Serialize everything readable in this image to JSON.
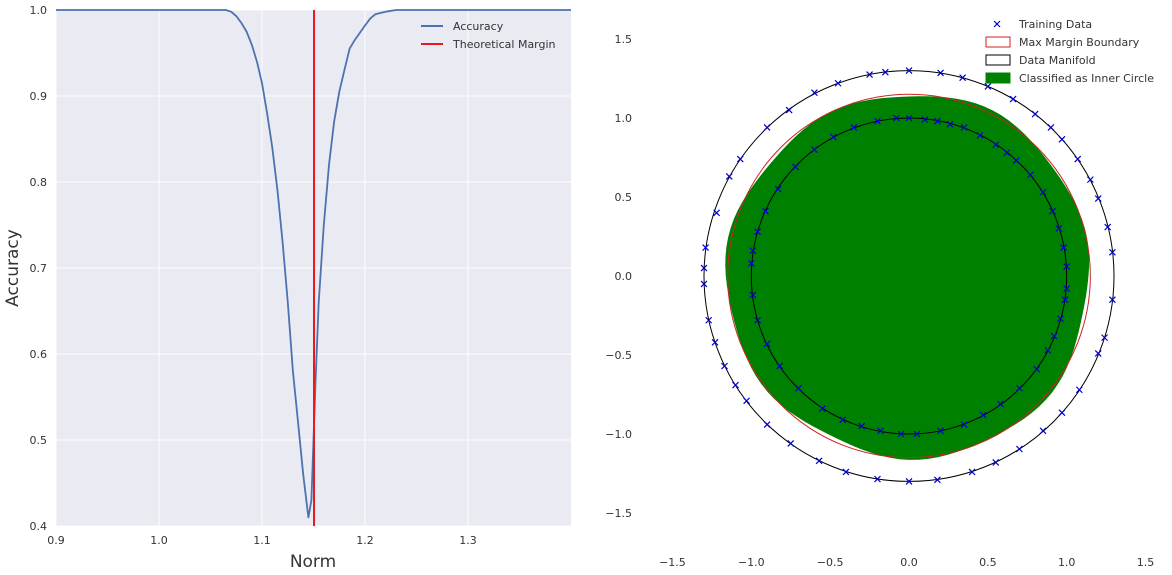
{
  "chart_data": [
    {
      "type": "line",
      "title": "",
      "xlabel": "Norm",
      "ylabel": "Accuracy",
      "xlim": [
        0.9,
        1.4
      ],
      "ylim": [
        0.4,
        1.0
      ],
      "grid": true,
      "legend": "top-right",
      "xticks": [
        {
          "value": 0.9,
          "label": "0.9"
        },
        {
          "value": 1.0,
          "label": "1.0"
        },
        {
          "value": 1.1,
          "label": "1.1"
        },
        {
          "value": 1.2,
          "label": "1.2"
        },
        {
          "value": 1.3,
          "label": "1.3"
        }
      ],
      "yticks": [
        {
          "value": 0.4,
          "label": "0.4"
        },
        {
          "value": 0.5,
          "label": "0.5"
        },
        {
          "value": 0.6,
          "label": "0.6"
        },
        {
          "value": 0.7,
          "label": "0.7"
        },
        {
          "value": 0.8,
          "label": "0.8"
        },
        {
          "value": 0.9,
          "label": "0.9"
        },
        {
          "value": 1.0,
          "label": "1.0"
        }
      ],
      "series": [
        {
          "name": "Accuracy",
          "color": "#4c72b0",
          "x": [
            0.9,
            1.05,
            1.065,
            1.07,
            1.075,
            1.08,
            1.085,
            1.09,
            1.095,
            1.1,
            1.105,
            1.11,
            1.115,
            1.12,
            1.125,
            1.13,
            1.135,
            1.14,
            1.145,
            1.148,
            1.15,
            1.152,
            1.155,
            1.16,
            1.165,
            1.17,
            1.175,
            1.18,
            1.185,
            1.19,
            1.2,
            1.205,
            1.21,
            1.22,
            1.23,
            1.24,
            1.4
          ],
          "y": [
            1.0,
            1.0,
            1.0,
            0.998,
            0.993,
            0.985,
            0.975,
            0.96,
            0.94,
            0.915,
            0.88,
            0.84,
            0.79,
            0.73,
            0.66,
            0.58,
            0.52,
            0.46,
            0.41,
            0.43,
            0.5,
            0.57,
            0.66,
            0.75,
            0.82,
            0.87,
            0.905,
            0.93,
            0.955,
            0.965,
            0.982,
            0.99,
            0.995,
            0.998,
            1.0,
            1.0,
            1.0
          ]
        },
        {
          "name": "Theoretical Margin",
          "color": "#e41a1c",
          "type": "vline",
          "x": 1.1505
        }
      ]
    },
    {
      "type": "scatter",
      "title": "",
      "xlabel": "",
      "ylabel": "",
      "xlim": [
        -1.5,
        1.5
      ],
      "ylim": [
        -1.5,
        1.5
      ],
      "grid": false,
      "legend": "top-right",
      "xticks": [
        {
          "value": -1.5,
          "label": "−1.5"
        },
        {
          "value": -1.0,
          "label": "−1.0"
        },
        {
          "value": -0.5,
          "label": "−0.5"
        },
        {
          "value": 0.0,
          "label": "0.0"
        },
        {
          "value": 0.5,
          "label": "0.5"
        },
        {
          "value": 1.0,
          "label": "1.0"
        },
        {
          "value": 1.5,
          "label": "1.5"
        }
      ],
      "yticks": [
        {
          "value": -1.5,
          "label": "−1.5"
        },
        {
          "value": -1.0,
          "label": "−1.0"
        },
        {
          "value": -0.5,
          "label": "−0.5"
        },
        {
          "value": 0.0,
          "label": "0.0"
        },
        {
          "value": 0.5,
          "label": "0.5"
        },
        {
          "value": 1.0,
          "label": "1.0"
        },
        {
          "value": 1.5,
          "label": "1.5"
        }
      ],
      "legend_entries": [
        {
          "label": "Training Data",
          "kind": "marker",
          "color": "#0000cc"
        },
        {
          "label": "Max Margin Boundary",
          "kind": "patch",
          "edge": "#cc2222",
          "fill": "#ffffff"
        },
        {
          "label": "Data Manifold",
          "kind": "patch",
          "edge": "#000000",
          "fill": "#ffffff"
        },
        {
          "label": "Classified as Inner Circle",
          "kind": "patch",
          "edge": "#008000",
          "fill": "#008000"
        }
      ],
      "circles": [
        {
          "name": "Data Manifold inner",
          "r": 1.0,
          "color": "#000000"
        },
        {
          "name": "Data Manifold outer",
          "r": 1.3,
          "color": "#000000"
        },
        {
          "name": "Max Margin Boundary",
          "r": 1.15,
          "color": "#cc2222"
        }
      ],
      "classified_region": {
        "name": "Classified as Inner Circle",
        "r": 1.15,
        "color": "#008000"
      },
      "training_data": {
        "color": "#0000cc",
        "marker": "x",
        "points": [
          [
            0.0,
            1.0
          ],
          [
            0.1,
            0.99
          ],
          [
            0.18,
            0.98
          ],
          [
            0.26,
            0.96
          ],
          [
            0.35,
            0.94
          ],
          [
            0.45,
            0.89
          ],
          [
            0.55,
            0.83
          ],
          [
            0.62,
            0.78
          ],
          [
            0.68,
            0.73
          ],
          [
            0.77,
            0.64
          ],
          [
            0.85,
            0.53
          ],
          [
            0.91,
            0.41
          ],
          [
            0.95,
            0.3
          ],
          [
            0.98,
            0.18
          ],
          [
            1.0,
            0.06
          ],
          [
            1.0,
            -0.08
          ],
          [
            0.99,
            -0.15
          ],
          [
            0.96,
            -0.27
          ],
          [
            0.92,
            -0.38
          ],
          [
            0.88,
            -0.47
          ],
          [
            0.81,
            -0.59
          ],
          [
            0.7,
            -0.71
          ],
          [
            0.58,
            -0.81
          ],
          [
            0.47,
            -0.88
          ],
          [
            0.35,
            -0.94
          ],
          [
            0.2,
            -0.98
          ],
          [
            0.05,
            -1.0
          ],
          [
            -0.05,
            -1.0
          ],
          [
            -0.18,
            -0.98
          ],
          [
            -0.3,
            -0.95
          ],
          [
            -0.42,
            -0.91
          ],
          [
            -0.55,
            -0.84
          ],
          [
            -0.7,
            -0.71
          ],
          [
            -0.82,
            -0.57
          ],
          [
            -0.9,
            -0.43
          ],
          [
            -0.96,
            -0.28
          ],
          [
            -0.99,
            -0.12
          ],
          [
            -1.0,
            0.08
          ],
          [
            -0.99,
            0.16
          ],
          [
            -0.96,
            0.28
          ],
          [
            -0.91,
            0.41
          ],
          [
            -0.83,
            0.55
          ],
          [
            -0.72,
            0.69
          ],
          [
            -0.6,
            0.8
          ],
          [
            -0.48,
            0.88
          ],
          [
            -0.35,
            0.94
          ],
          [
            -0.2,
            0.98
          ],
          [
            -0.08,
            1.0
          ],
          [
            0.0,
            1.3
          ],
          [
            0.2,
            1.285
          ],
          [
            0.34,
            1.255
          ],
          [
            0.5,
            1.2
          ],
          [
            0.66,
            1.12
          ],
          [
            0.8,
            1.025
          ],
          [
            0.9,
            0.94
          ],
          [
            0.97,
            0.865
          ],
          [
            1.07,
            0.74
          ],
          [
            1.15,
            0.61
          ],
          [
            1.2,
            0.49
          ],
          [
            1.26,
            0.31
          ],
          [
            1.29,
            0.15
          ],
          [
            1.29,
            -0.15
          ],
          [
            1.24,
            -0.39
          ],
          [
            1.2,
            -0.49
          ],
          [
            1.08,
            -0.72
          ],
          [
            0.97,
            -0.865
          ],
          [
            0.85,
            -0.98
          ],
          [
            0.7,
            -1.095
          ],
          [
            0.55,
            -1.18
          ],
          [
            0.4,
            -1.24
          ],
          [
            0.18,
            -1.29
          ],
          [
            0.0,
            -1.3
          ],
          [
            -0.2,
            -1.285
          ],
          [
            -0.4,
            -1.24
          ],
          [
            -0.57,
            -1.17
          ],
          [
            -0.75,
            -1.06
          ],
          [
            -0.9,
            -0.94
          ],
          [
            -1.03,
            -0.79
          ],
          [
            -1.1,
            -0.69
          ],
          [
            -1.17,
            -0.57
          ],
          [
            -1.23,
            -0.42
          ],
          [
            -1.27,
            -0.28
          ],
          [
            -1.3,
            -0.05
          ],
          [
            -1.3,
            0.05
          ],
          [
            -1.29,
            0.18
          ],
          [
            -1.22,
            0.4
          ],
          [
            -1.14,
            0.63
          ],
          [
            -1.07,
            0.74
          ],
          [
            -0.9,
            0.94
          ],
          [
            -0.76,
            1.05
          ],
          [
            -0.6,
            1.16
          ],
          [
            -0.45,
            1.22
          ],
          [
            -0.25,
            1.275
          ],
          [
            -0.15,
            1.29
          ]
        ]
      }
    }
  ]
}
